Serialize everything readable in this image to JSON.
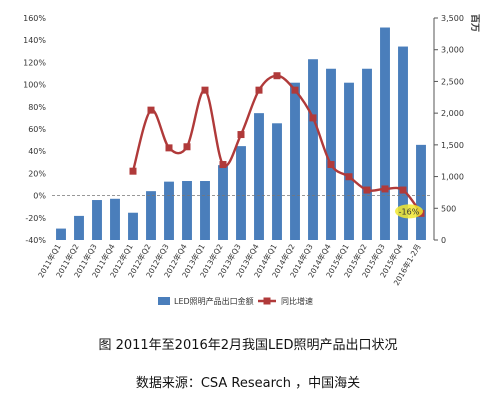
{
  "chart_data": {
    "type": "bar+line",
    "categories": [
      "2011年Q1",
      "2011年Q2",
      "2011年Q3",
      "2011年Q4",
      "2012年Q1",
      "2012年Q2",
      "2012年Q3",
      "2012年Q4",
      "2013年Q1",
      "2013年Q2",
      "2013年Q3",
      "2013年Q4",
      "2014年Q1",
      "2014年Q2",
      "2014年Q3",
      "2014年Q4",
      "2015年Q1",
      "2015年Q2",
      "2015年Q3",
      "2015年Q4",
      "2016年1-2月"
    ],
    "series": [
      {
        "name": "LED照明产品出口金额",
        "type": "bar",
        "axis": "right",
        "color": "#4a7ebb",
        "values": [
          180,
          380,
          630,
          650,
          430,
          770,
          920,
          930,
          930,
          1180,
          1480,
          2000,
          1840,
          2480,
          2850,
          2700,
          2480,
          2700,
          3350,
          3050,
          1500
        ]
      },
      {
        "name": "同比增速",
        "type": "line",
        "axis": "left",
        "color": "#b03a3a",
        "values": [
          null,
          null,
          null,
          null,
          22,
          77,
          43,
          44,
          95,
          28,
          55,
          95,
          108,
          95,
          70,
          28,
          17,
          5,
          6,
          5,
          -16
        ]
      }
    ],
    "left_axis": {
      "min": -40,
      "max": 160,
      "step": 20,
      "unit": "%",
      "ticks": [
        "-40%",
        "-20%",
        "0%",
        "20%",
        "40%",
        "60%",
        "80%",
        "100%",
        "120%",
        "140%",
        "160%"
      ]
    },
    "right_axis": {
      "label": "百万",
      "min": 0,
      "max": 3500,
      "step": 500,
      "ticks": [
        "0",
        "500",
        "1,000",
        "1,500",
        "2,000",
        "2,500",
        "3,000",
        "3,500"
      ]
    },
    "annotations": [
      {
        "text": "-16%",
        "color": "#f2e830"
      }
    ],
    "legend": {
      "placement": "bottom"
    },
    "grid": false
  },
  "caption": {
    "title": "图 2011年至2016年2月我国LED照明产品出口状况",
    "source": "数据来源：CSA Research ，中国海关"
  }
}
